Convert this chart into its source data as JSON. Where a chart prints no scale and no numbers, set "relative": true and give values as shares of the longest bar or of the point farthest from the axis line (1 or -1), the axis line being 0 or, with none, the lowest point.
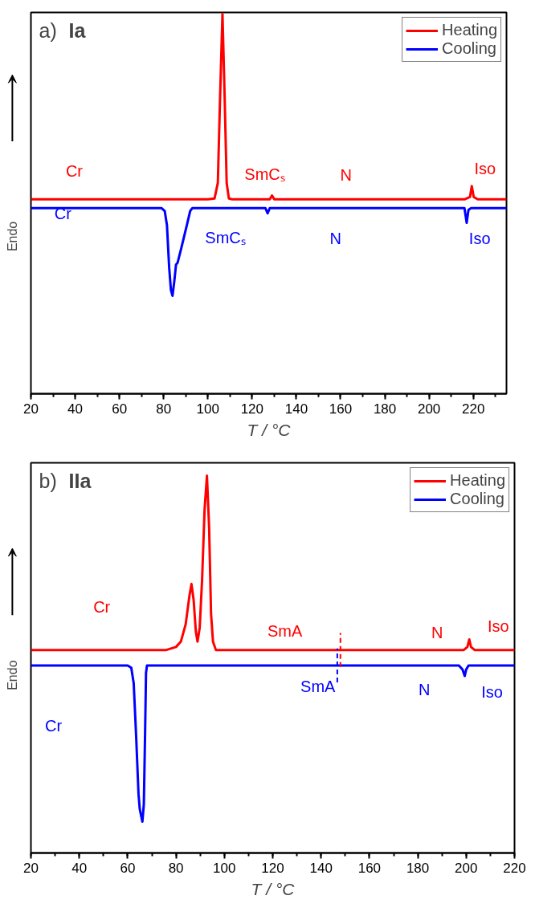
{
  "chart_data": [
    {
      "type": "line",
      "title": "a) Ia",
      "xlabel": "T / °C",
      "ylabel": "Endo",
      "relative": true,
      "xlim": [
        20,
        235
      ],
      "xticks": [
        20,
        40,
        60,
        80,
        100,
        120,
        140,
        160,
        180,
        200,
        220
      ],
      "grid": false,
      "legend": "top right",
      "marker": "none",
      "line_style": "solid",
      "tick_labels": "x",
      "series": [
        {
          "name": "Heating",
          "color": "#ff0000",
          "x": [
            20,
            100,
            103,
            104.5,
            105.5,
            106.6,
            107.6,
            108.5,
            109.5,
            111,
            128,
            129,
            130,
            216,
            218.5,
            219.3,
            220.2,
            222,
            235
          ],
          "values": [
            0.512,
            0.512,
            0.514,
            0.555,
            0.777,
            1,
            0.777,
            0.555,
            0.514,
            0.512,
            0.512,
            0.522,
            0.512,
            0.512,
            0.518,
            0.547,
            0.518,
            0.512,
            0.512
          ]
        },
        {
          "name": "Cooling",
          "color": "#0000ff",
          "x": [
            20,
            79,
            80.5,
            81.5,
            82.5,
            83.3,
            84,
            84.8,
            85.6,
            86.3,
            88,
            90.5,
            92,
            93,
            126,
            127,
            128,
            216,
            217,
            217.8,
            219,
            235
          ],
          "values": [
            0.489,
            0.489,
            0.481,
            0.444,
            0.332,
            0.273,
            0.258,
            0.295,
            0.34,
            0.345,
            0.384,
            0.444,
            0.481,
            0.489,
            0.489,
            0.475,
            0.489,
            0.489,
            0.45,
            0.484,
            0.489,
            0.489
          ]
        }
      ],
      "annotations": [
        "Cr",
        "Cr",
        "SmCₛ",
        "SmCₛ",
        "N",
        "N",
        "Iso",
        "Iso"
      ]
    },
    {
      "type": "line",
      "title": "b) IIa",
      "xlabel": "T / °C",
      "ylabel": "Endo",
      "relative": true,
      "xlim": [
        20,
        220
      ],
      "xticks": [
        20,
        40,
        60,
        80,
        100,
        120,
        140,
        160,
        180,
        200,
        220
      ],
      "grid": false,
      "legend": "top right",
      "marker": "none",
      "line_style": "solid",
      "tick_labels": "x",
      "series": [
        {
          "name": "Heating",
          "color": "#ff0000",
          "x": [
            20,
            76,
            80,
            82,
            84,
            85.5,
            86.4,
            87.3,
            88.2,
            88.9,
            89.8,
            90.8,
            91.8,
            92.8,
            93.7,
            94.5,
            95.3,
            96.5,
            199,
            200.5,
            201.3,
            202,
            203.5,
            220
          ],
          "values": [
            0.538,
            0.538,
            0.546,
            0.56,
            0.606,
            0.679,
            0.713,
            0.67,
            0.587,
            0.56,
            0.597,
            0.725,
            0.908,
            1,
            0.862,
            0.633,
            0.56,
            0.538,
            0.538,
            0.546,
            0.566,
            0.546,
            0.538,
            0.538
          ]
        },
        {
          "name": "Cooling",
          "color": "#0000ff",
          "x": [
            20,
            60,
            61.5,
            62.5,
            63.5,
            64.5,
            65,
            65.5,
            66.1,
            66.7,
            67.2,
            67.6,
            68,
            197,
            198.5,
            199.4,
            200,
            201,
            220
          ],
          "values": [
            0.497,
            0.497,
            0.491,
            0.45,
            0.312,
            0.156,
            0.117,
            0.101,
            0.083,
            0.129,
            0.312,
            0.477,
            0.497,
            0.497,
            0.486,
            0.469,
            0.486,
            0.497,
            0.497
          ]
        }
      ],
      "ref_lines": [
        {
          "axis": "x",
          "value": 148,
          "color": "#ff0000",
          "line_style": "dashed"
        },
        {
          "axis": "x",
          "value": 146.7,
          "color": "#0000ff",
          "line_style": "dashed"
        }
      ],
      "annotations": [
        "Cr",
        "Cr",
        "SmA",
        "SmA",
        "N",
        "N",
        "Iso",
        "Iso"
      ]
    }
  ]
}
